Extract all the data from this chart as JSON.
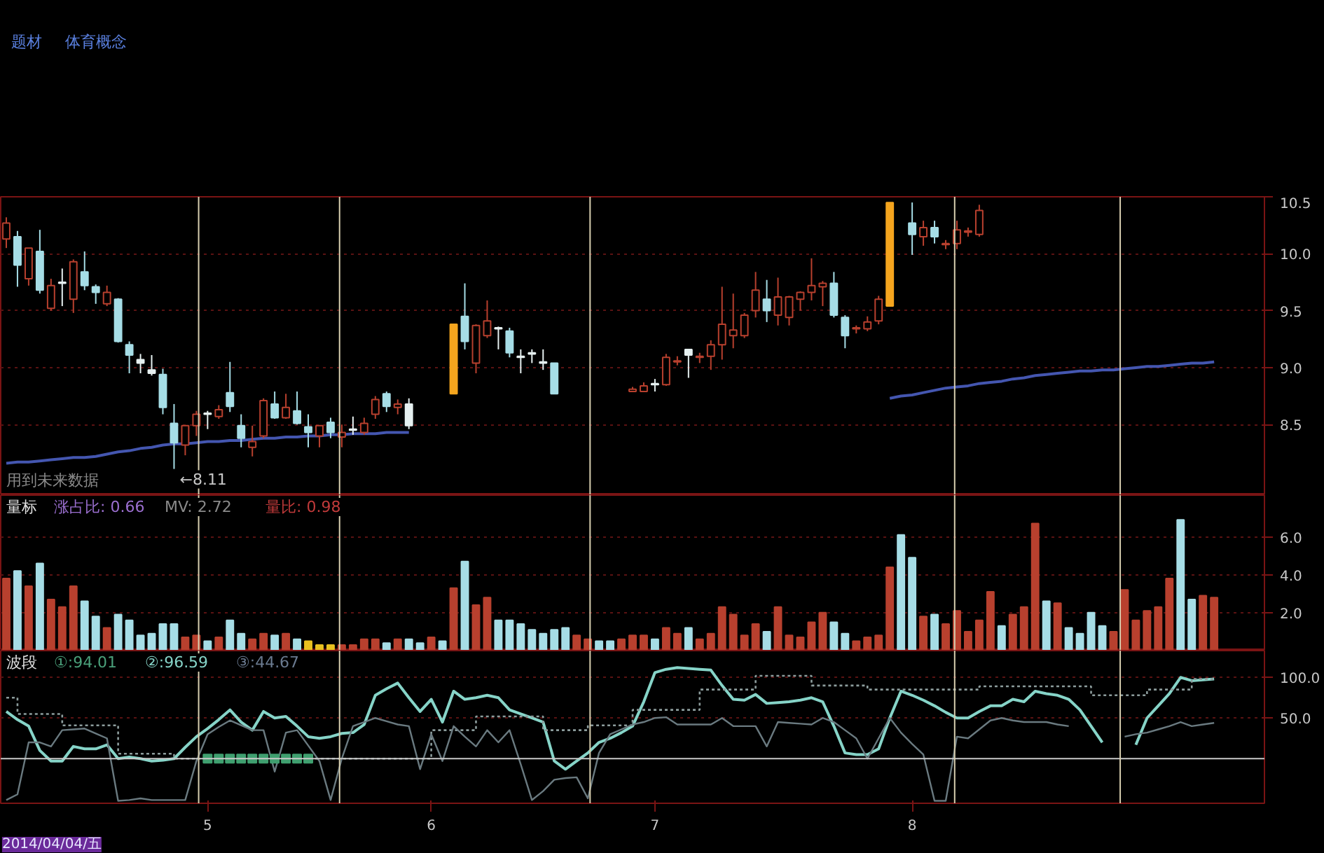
{
  "chart_data": [
    {
      "type": "candlestick",
      "title": "题材",
      "subtitle": "体育概念",
      "categories": [
        null,
        null,
        null,
        null,
        null,
        null,
        null,
        null,
        null,
        null,
        null,
        null,
        null,
        null,
        null,
        null,
        null,
        null,
        "5",
        null,
        null,
        null,
        null,
        null,
        null,
        null,
        null,
        null,
        null,
        null,
        null,
        null,
        null,
        null,
        null,
        null,
        null,
        null,
        "6",
        null,
        null,
        null,
        null,
        null,
        null,
        null,
        null,
        null,
        null,
        null,
        null,
        null,
        null,
        null,
        null,
        null,
        null,
        null,
        "7",
        null,
        null,
        null,
        null,
        null,
        null,
        null,
        null,
        null,
        null,
        null,
        null,
        null,
        null,
        null,
        null,
        null,
        null,
        null,
        null,
        null,
        null,
        "8",
        null,
        null,
        null,
        null,
        null,
        null,
        null,
        null,
        null,
        null,
        null,
        null,
        null,
        null,
        null,
        null,
        null,
        null,
        null,
        null,
        null,
        null,
        null,
        null,
        null,
        null,
        null
      ],
      "ohlc": [
        [
          10.13,
          10.32,
          10.05,
          10.27
        ],
        [
          10.15,
          10.2,
          9.71,
          9.9
        ],
        [
          9.78,
          10.05,
          9.72,
          10.05
        ],
        [
          10.02,
          10.21,
          9.65,
          9.68
        ],
        [
          9.52,
          9.78,
          9.5,
          9.72
        ],
        [
          9.74,
          9.87,
          9.54,
          9.75
        ],
        [
          9.6,
          9.95,
          9.48,
          9.93
        ],
        [
          9.84,
          10.02,
          9.68,
          9.72
        ],
        [
          9.71,
          9.73,
          9.56,
          9.66
        ],
        [
          9.56,
          9.72,
          9.54,
          9.66
        ],
        [
          9.6,
          9.61,
          9.22,
          9.23
        ],
        [
          9.2,
          9.23,
          8.95,
          9.11
        ],
        [
          9.07,
          9.12,
          8.95,
          9.04
        ],
        [
          8.98,
          9.11,
          8.93,
          8.95
        ],
        [
          8.94,
          8.99,
          8.59,
          8.65
        ],
        [
          8.51,
          8.68,
          8.11,
          8.34
        ],
        [
          8.32,
          8.49,
          8.23,
          8.49
        ],
        [
          8.49,
          8.62,
          8.4,
          8.59
        ],
        [
          8.59,
          8.62,
          8.46,
          8.6
        ],
        [
          8.57,
          8.67,
          8.55,
          8.63
        ],
        [
          8.78,
          9.05,
          8.61,
          8.66
        ],
        [
          8.49,
          8.59,
          8.3,
          8.38
        ],
        [
          8.3,
          8.49,
          8.22,
          8.35
        ],
        [
          8.4,
          8.73,
          8.38,
          8.71
        ],
        [
          8.68,
          8.79,
          8.55,
          8.56
        ],
        [
          8.56,
          8.77,
          8.55,
          8.65
        ],
        [
          8.62,
          8.79,
          8.5,
          8.51
        ],
        [
          8.48,
          8.59,
          8.3,
          8.43
        ],
        [
          8.4,
          8.49,
          8.3,
          8.49
        ],
        [
          8.52,
          8.56,
          8.38,
          8.43
        ],
        [
          8.39,
          8.5,
          8.3,
          8.43
        ],
        [
          8.45,
          8.57,
          8.41,
          8.46
        ],
        [
          8.43,
          8.56,
          8.41,
          8.51
        ],
        [
          8.59,
          8.75,
          8.55,
          8.72
        ],
        [
          8.77,
          8.79,
          8.61,
          8.66
        ],
        [
          8.65,
          8.72,
          8.59,
          8.68
        ],
        [
          8.68,
          8.73,
          8.46,
          8.49
        ],
        null,
        null,
        null,
        [
          8.77,
          9.38,
          8.77,
          9.38
        ],
        [
          9.45,
          9.74,
          9.16,
          9.23
        ],
        [
          9.04,
          9.38,
          8.95,
          9.37
        ],
        [
          9.28,
          9.59,
          9.26,
          9.41
        ],
        [
          9.35,
          9.36,
          9.16,
          9.34
        ],
        [
          9.32,
          9.35,
          9.09,
          9.13
        ],
        [
          9.1,
          9.16,
          8.95,
          9.09
        ],
        [
          9.13,
          9.16,
          9.04,
          9.12
        ],
        [
          9.05,
          9.16,
          8.98,
          9.04
        ],
        [
          9.04,
          9.04,
          8.77,
          8.77
        ],
        null,
        null,
        null,
        null,
        null,
        null,
        [
          8.79,
          8.83,
          8.79,
          8.81
        ],
        [
          8.79,
          8.87,
          8.79,
          8.84
        ],
        [
          8.86,
          8.9,
          8.79,
          8.85
        ],
        [
          8.85,
          9.12,
          8.84,
          9.09
        ],
        [
          9.05,
          9.1,
          9.02,
          9.06
        ],
        [
          9.16,
          9.16,
          8.91,
          9.11
        ],
        [
          9.09,
          9.13,
          9.04,
          9.1
        ],
        [
          9.1,
          9.24,
          8.98,
          9.2
        ],
        [
          9.2,
          9.71,
          9.07,
          9.38
        ],
        [
          9.28,
          9.65,
          9.17,
          9.33
        ],
        [
          9.28,
          9.48,
          9.26,
          9.46
        ],
        [
          9.5,
          9.84,
          9.44,
          9.68
        ],
        [
          9.6,
          9.77,
          9.4,
          9.5
        ],
        [
          9.46,
          9.79,
          9.37,
          9.62
        ],
        [
          9.44,
          9.63,
          9.37,
          9.62
        ],
        [
          9.6,
          9.67,
          9.5,
          9.66
        ],
        [
          9.66,
          9.96,
          9.59,
          9.72
        ],
        [
          9.71,
          9.76,
          9.54,
          9.74
        ],
        [
          9.74,
          9.84,
          9.44,
          9.46
        ],
        [
          9.44,
          9.46,
          9.17,
          9.28
        ],
        [
          9.34,
          9.37,
          9.3,
          9.35
        ],
        [
          9.34,
          9.45,
          9.32,
          9.4
        ],
        [
          9.41,
          9.63,
          9.38,
          9.6
        ],
        [
          9.54,
          10.45,
          9.54,
          10.45
        ],
        null,
        [
          10.27,
          10.45,
          9.99,
          10.17
        ],
        [
          10.15,
          10.29,
          10.07,
          10.23
        ],
        [
          10.23,
          10.29,
          10.09,
          10.15
        ],
        [
          10.08,
          10.12,
          10.04,
          10.09
        ],
        [
          10.09,
          10.29,
          10.04,
          10.21
        ],
        [
          10.19,
          10.23,
          10.15,
          10.2
        ],
        [
          10.17,
          10.43,
          10.15,
          10.38
        ],
        null,
        null,
        null,
        null,
        null,
        null,
        null,
        null,
        null,
        null,
        null,
        null,
        null,
        null,
        null,
        null,
        null,
        null,
        null,
        null,
        null
      ],
      "colors": [
        "#b8402e",
        "#a6dde6",
        "#b8402e",
        "#a6dde6",
        "#b8402e",
        "#e6f0f0",
        "#b8402e",
        "#a6dde6",
        "#a6dde6",
        "#b8402e",
        "#a6dde6",
        "#a6dde6",
        "#e6f0f0",
        "#e6f0f0",
        "#a6dde6",
        "#a6dde6",
        "#b8402e",
        "#b8402e",
        "#e6f0f0",
        "#b8402e",
        "#a6dde6",
        "#a6dde6",
        "#b8402e",
        "#b8402e",
        "#a6dde6",
        "#b8402e",
        "#a6dde6",
        "#a6dde6",
        "#b8402e",
        "#a6dde6",
        "#b8402e",
        "#e6f0f0",
        "#b8402e",
        "#b8402e",
        "#a6dde6",
        "#b8402e",
        "#e6f0f0",
        null,
        null,
        null,
        "#f5a51e",
        "#a6dde6",
        "#b8402e",
        "#b8402e",
        "#e6f0f0",
        "#a6dde6",
        "#e6f0f0",
        "#e6f0f0",
        "#e6f0f0",
        "#a6dde6",
        null,
        null,
        null,
        null,
        null,
        null,
        "#b8402e",
        "#b8402e",
        "#e6f0f0",
        "#b8402e",
        "#b8402e",
        "#e6f0f0",
        "#b8402e",
        "#b8402e",
        "#b8402e",
        "#b8402e",
        "#b8402e",
        "#b8402e",
        "#a6dde6",
        "#b8402e",
        "#b8402e",
        "#b8402e",
        "#b8402e",
        "#b8402e",
        "#a6dde6",
        "#a6dde6",
        "#b8402e",
        "#b8402e",
        "#b8402e",
        "#f5a51e",
        null,
        "#a6dde6",
        "#b8402e",
        "#a6dde6",
        "#b8402e",
        "#b8402e",
        "#b8402e",
        "#b8402e",
        null,
        null,
        null,
        null,
        null,
        null,
        null,
        null,
        null,
        null,
        null,
        null,
        null,
        null,
        null,
        null,
        null,
        null,
        null,
        null,
        null
      ],
      "series": [
        {
          "type": "line",
          "color": "#4456b0",
          "values": [
            8.16,
            8.17,
            8.17,
            8.18,
            8.19,
            8.2,
            8.21,
            8.21,
            8.22,
            8.24,
            8.26,
            8.27,
            8.29,
            8.3,
            8.32,
            8.33,
            8.33,
            8.34,
            8.35,
            8.35,
            8.36,
            8.36,
            8.37,
            8.38,
            8.38,
            8.39,
            8.39,
            8.4,
            8.4,
            8.41,
            8.41,
            8.42,
            8.42,
            8.42,
            8.43,
            8.43,
            8.43,
            null,
            null,
            null,
            null,
            null,
            null,
            null,
            null,
            null,
            null,
            null,
            null,
            null,
            null,
            null,
            null,
            null,
            null,
            null,
            null,
            null,
            null,
            null,
            null,
            null,
            null,
            null,
            null,
            null,
            null,
            null,
            null,
            null,
            null,
            null,
            null,
            null,
            null,
            null,
            null,
            null,
            null,
            8.73,
            8.75,
            8.76,
            8.78,
            8.8,
            8.82,
            8.83,
            8.84,
            8.86,
            8.87,
            8.88,
            8.9,
            8.91,
            8.93,
            8.94,
            8.95,
            8.96,
            8.97,
            8.97,
            8.98,
            8.98,
            8.99,
            9.0,
            9.01,
            9.01,
            9.02,
            9.03,
            9.04,
            9.04,
            9.05
          ]
        }
      ],
      "ylim": [
        7.88,
        10.5
      ],
      "yticks": [
        {
          "value": 8.5,
          "label": "8.5"
        },
        {
          "value": 9.0,
          "label": "9.0"
        },
        {
          "value": 9.5,
          "label": "9.5"
        },
        {
          "value": 10.0,
          "label": "10.0"
        },
        {
          "value": 10.5,
          "label": "10.5"
        }
      ],
      "grid": "y",
      "tick_labels": "y",
      "annotations": [
        "用到未来数据",
        "←8.11"
      ]
    },
    {
      "type": "bar",
      "title": "量标",
      "categories": [
        null,
        null,
        null,
        null,
        null,
        null,
        null,
        null,
        null,
        null,
        null,
        null,
        null,
        null,
        null,
        null,
        null,
        null,
        "5",
        null,
        null,
        null,
        null,
        null,
        null,
        null,
        null,
        null,
        null,
        null,
        null,
        null,
        null,
        null,
        null,
        null,
        null,
        null,
        "6",
        null,
        null,
        null,
        null,
        null,
        null,
        null,
        null,
        null,
        null,
        null,
        null,
        null,
        null,
        null,
        null,
        null,
        null,
        null,
        "7",
        null,
        null,
        null,
        null,
        null,
        null,
        null,
        null,
        null,
        null,
        null,
        null,
        null,
        null,
        null,
        null,
        null,
        null,
        null,
        null,
        null,
        null,
        "8",
        null,
        null,
        null,
        null,
        null,
        null,
        null,
        null,
        null,
        null,
        null,
        null,
        null,
        null,
        null,
        null,
        null,
        null,
        null,
        null,
        null,
        null,
        null,
        null,
        null,
        null,
        null
      ],
      "values": [
        3.8,
        4.2,
        3.4,
        4.6,
        2.7,
        2.3,
        3.4,
        2.6,
        1.8,
        1.2,
        1.9,
        1.6,
        0.8,
        0.9,
        1.4,
        1.4,
        0.7,
        0.8,
        0.5,
        0.7,
        1.6,
        0.9,
        0.6,
        0.9,
        0.8,
        0.9,
        0.6,
        0.5,
        0.3,
        0.3,
        0.3,
        0.3,
        0.6,
        0.6,
        0.4,
        0.6,
        0.6,
        0.4,
        0.7,
        0.5,
        3.3,
        4.7,
        2.4,
        2.8,
        1.6,
        1.6,
        1.4,
        1.1,
        0.9,
        1.1,
        1.2,
        0.8,
        0.6,
        0.5,
        0.5,
        0.6,
        0.8,
        0.8,
        0.6,
        1.2,
        0.9,
        1.2,
        0.6,
        0.9,
        2.3,
        1.9,
        0.8,
        1.4,
        1.0,
        2.3,
        0.8,
        0.7,
        1.5,
        2.0,
        1.5,
        0.9,
        0.5,
        0.7,
        0.8,
        4.4,
        6.1,
        4.9,
        1.8,
        1.9,
        1.4,
        2.1,
        1.0,
        1.6,
        3.1,
        1.3,
        1.9,
        2.3,
        6.7,
        2.6,
        2.5,
        1.2,
        0.9,
        2.0,
        1.3,
        1.0,
        3.2,
        1.6,
        2.1,
        2.3,
        3.8,
        6.9,
        2.7,
        2.9,
        2.8
      ],
      "colors": [
        "#b8402e",
        "#a6dde6",
        "#b8402e",
        "#a6dde6",
        "#b8402e",
        "#b8402e",
        "#b8402e",
        "#a6dde6",
        "#a6dde6",
        "#b8402e",
        "#a6dde6",
        "#a6dde6",
        "#a6dde6",
        "#a6dde6",
        "#a6dde6",
        "#a6dde6",
        "#b8402e",
        "#b8402e",
        "#a6dde6",
        "#b8402e",
        "#a6dde6",
        "#a6dde6",
        "#b8402e",
        "#b8402e",
        "#a6dde6",
        "#b8402e",
        "#a6dde6",
        "#e8c020",
        "#e8c020",
        "#e8c020",
        "#b8402e",
        "#b8402e",
        "#b8402e",
        "#b8402e",
        "#a6dde6",
        "#b8402e",
        "#a6dde6",
        "#a6dde6",
        "#b8402e",
        "#a6dde6",
        "#b8402e",
        "#a6dde6",
        "#b8402e",
        "#b8402e",
        "#a6dde6",
        "#a6dde6",
        "#a6dde6",
        "#a6dde6",
        "#a6dde6",
        "#a6dde6",
        "#a6dde6",
        "#b8402e",
        "#b8402e",
        "#a6dde6",
        "#a6dde6",
        "#b8402e",
        "#b8402e",
        "#b8402e",
        "#a6dde6",
        "#b8402e",
        "#b8402e",
        "#a6dde6",
        "#b8402e",
        "#b8402e",
        "#b8402e",
        "#b8402e",
        "#b8402e",
        "#b8402e",
        "#a6dde6",
        "#b8402e",
        "#b8402e",
        "#b8402e",
        "#b8402e",
        "#b8402e",
        "#a6dde6",
        "#a6dde6",
        "#b8402e",
        "#b8402e",
        "#b8402e",
        "#b8402e",
        "#a6dde6",
        "#a6dde6",
        "#b8402e",
        "#a6dde6",
        "#b8402e",
        "#b8402e",
        "#b8402e",
        "#b8402e",
        "#b8402e",
        "#a6dde6",
        "#b8402e",
        "#b8402e",
        "#b8402e",
        "#a6dde6",
        "#b8402e",
        "#a6dde6",
        "#a6dde6",
        "#a6dde6",
        "#a6dde6",
        "#b8402e",
        "#b8402e",
        "#b8402e",
        "#b8402e",
        "#b8402e",
        "#b8402e",
        "#a6dde6",
        "#a6dde6",
        "#b8402e",
        "#b8402e"
      ],
      "ylim": [
        0,
        8.2
      ],
      "yticks": [
        {
          "value": 2,
          "label": "2.0"
        },
        {
          "value": 4,
          "label": "4.0"
        },
        {
          "value": 6,
          "label": "6.0"
        }
      ],
      "grid": "y",
      "tick_labels": "y",
      "annotations": [
        "涨占比: 0.66",
        "MV: 2.72",
        "量比: 0.98"
      ]
    },
    {
      "type": "line",
      "title": "波段",
      "categories": [
        null,
        null,
        null,
        null,
        null,
        null,
        null,
        null,
        null,
        null,
        null,
        null,
        null,
        null,
        null,
        null,
        null,
        null,
        "5",
        null,
        null,
        null,
        null,
        null,
        null,
        null,
        null,
        null,
        null,
        null,
        null,
        null,
        null,
        null,
        null,
        null,
        null,
        null,
        "6",
        null,
        null,
        null,
        null,
        null,
        null,
        null,
        null,
        null,
        null,
        null,
        null,
        null,
        null,
        null,
        null,
        null,
        null,
        null,
        "7",
        null,
        null,
        null,
        null,
        null,
        null,
        null,
        null,
        null,
        null,
        null,
        null,
        null,
        null,
        null,
        null,
        null,
        null,
        null,
        null,
        null,
        null,
        "8",
        null,
        null,
        null,
        null,
        null,
        null,
        null,
        null,
        null,
        null,
        null,
        null,
        null,
        null,
        null,
        null,
        null,
        null,
        null,
        null,
        null,
        null,
        null,
        null,
        null,
        null,
        null
      ],
      "series": [
        {
          "type": "line",
          "color": "#86d4c8",
          "values": [
            58,
            48,
            40,
            10,
            -3,
            -3,
            15,
            12,
            12,
            17,
            0,
            2,
            0,
            -3,
            -2,
            0,
            14,
            27,
            37,
            48,
            60,
            45,
            35,
            58,
            50,
            52,
            40,
            27,
            25,
            27,
            31,
            32,
            42,
            78,
            86,
            93,
            75,
            58,
            73,
            45,
            83,
            73,
            75,
            78,
            75,
            60,
            55,
            50,
            45,
            -3,
            -13,
            -3,
            7,
            20,
            25,
            32,
            40,
            70,
            106,
            110,
            112,
            111,
            110,
            109,
            90,
            73,
            72,
            79,
            68,
            69,
            70,
            72,
            75,
            70,
            40,
            7,
            5,
            5,
            12,
            50,
            83,
            78,
            72,
            65,
            57,
            50,
            50,
            58,
            65,
            65,
            73,
            70,
            83,
            80,
            78,
            73,
            60,
            40,
            20,
            null,
            null,
            17,
            50,
            65,
            80,
            100,
            96,
            97,
            98
          ]
        },
        {
          "type": "step",
          "color": "#8c9c9c",
          "line_style": "dotted",
          "values": [
            75,
            55,
            55,
            55,
            55,
            41,
            41,
            41,
            41,
            41,
            6,
            6,
            6,
            6,
            6,
            0,
            0,
            0,
            0,
            0,
            0,
            0,
            0,
            0,
            0,
            0,
            0,
            0,
            0,
            0,
            0,
            0,
            0,
            0,
            0,
            0,
            0,
            0,
            35,
            35,
            35,
            35,
            52,
            52,
            52,
            52,
            52,
            52,
            35,
            35,
            35,
            35,
            41,
            41,
            41,
            41,
            60,
            60,
            60,
            60,
            60,
            60,
            85,
            85,
            85,
            85,
            85,
            102,
            102,
            102,
            102,
            102,
            90,
            90,
            90,
            90,
            90,
            85,
            85,
            85,
            85,
            85,
            85,
            85,
            85,
            85,
            85,
            89,
            89,
            89,
            89,
            89,
            89,
            89,
            89,
            89,
            89,
            78,
            78,
            78,
            78,
            78,
            85,
            85,
            85,
            85,
            98,
            98,
            98
          ]
        },
        {
          "type": "line",
          "color": "#6a7a80",
          "values": [
            -51,
            -44,
            20,
            20,
            15,
            35,
            36,
            37,
            31,
            25,
            -52,
            -51,
            -49,
            -51,
            -51,
            -51,
            -51,
            -3,
            30,
            39,
            47,
            41,
            35,
            35,
            -16,
            32,
            35,
            16,
            -3,
            -51,
            0,
            40,
            45,
            50,
            46,
            42,
            40,
            -13,
            30,
            -3,
            40,
            27,
            15,
            35,
            20,
            35,
            -7,
            -51,
            -40,
            -26,
            -24,
            -23,
            -49,
            7,
            30,
            36,
            42,
            45,
            50,
            51,
            42,
            42,
            42,
            42,
            50,
            40,
            40,
            40,
            15,
            45,
            44,
            43,
            42,
            50,
            45,
            35,
            25,
            0,
            25,
            50,
            32,
            18,
            5,
            -52,
            -52,
            27,
            25,
            36,
            47,
            50,
            47,
            45,
            45,
            45,
            42,
            40,
            null,
            null,
            null,
            null,
            27,
            30,
            32,
            36,
            40,
            45,
            40,
            42,
            44
          ]
        },
        {
          "type": "scatter",
          "color": "#3f9f6f",
          "marker": "square",
          "values": [
            null,
            null,
            null,
            null,
            null,
            null,
            null,
            null,
            null,
            null,
            null,
            null,
            null,
            null,
            null,
            null,
            null,
            null,
            0,
            0,
            0,
            0,
            0,
            0,
            0,
            0,
            0,
            0,
            null,
            null,
            null,
            null,
            null,
            null,
            null,
            null,
            null,
            null,
            null,
            null,
            null,
            null,
            null,
            null,
            null,
            null,
            null,
            null,
            null,
            null,
            null,
            null,
            null,
            null,
            null,
            null,
            null,
            null,
            null,
            null,
            null,
            null,
            null,
            null,
            null,
            null,
            null,
            null,
            null,
            null,
            null,
            null,
            null,
            null,
            null,
            null,
            null,
            null,
            null,
            null,
            null,
            null,
            null,
            null,
            null,
            null,
            null,
            null,
            null,
            null,
            null,
            null,
            null,
            null,
            null,
            null,
            null,
            null,
            null,
            null,
            null,
            null,
            null,
            null,
            null,
            null,
            null,
            null,
            null
          ]
        }
      ],
      "ylim": [
        -55,
        133
      ],
      "yticks": [
        {
          "value": 50,
          "label": "50.0"
        },
        {
          "value": 100,
          "label": "100.0"
        }
      ],
      "grid": "y",
      "ref_lines": [
        {
          "axis": "y",
          "value": 0,
          "color": "#c8c8c8"
        }
      ],
      "annotations": [
        "①:94.01",
        "②:96.59",
        "③:44.67",
        "2014/04/04/五"
      ]
    }
  ]
}
